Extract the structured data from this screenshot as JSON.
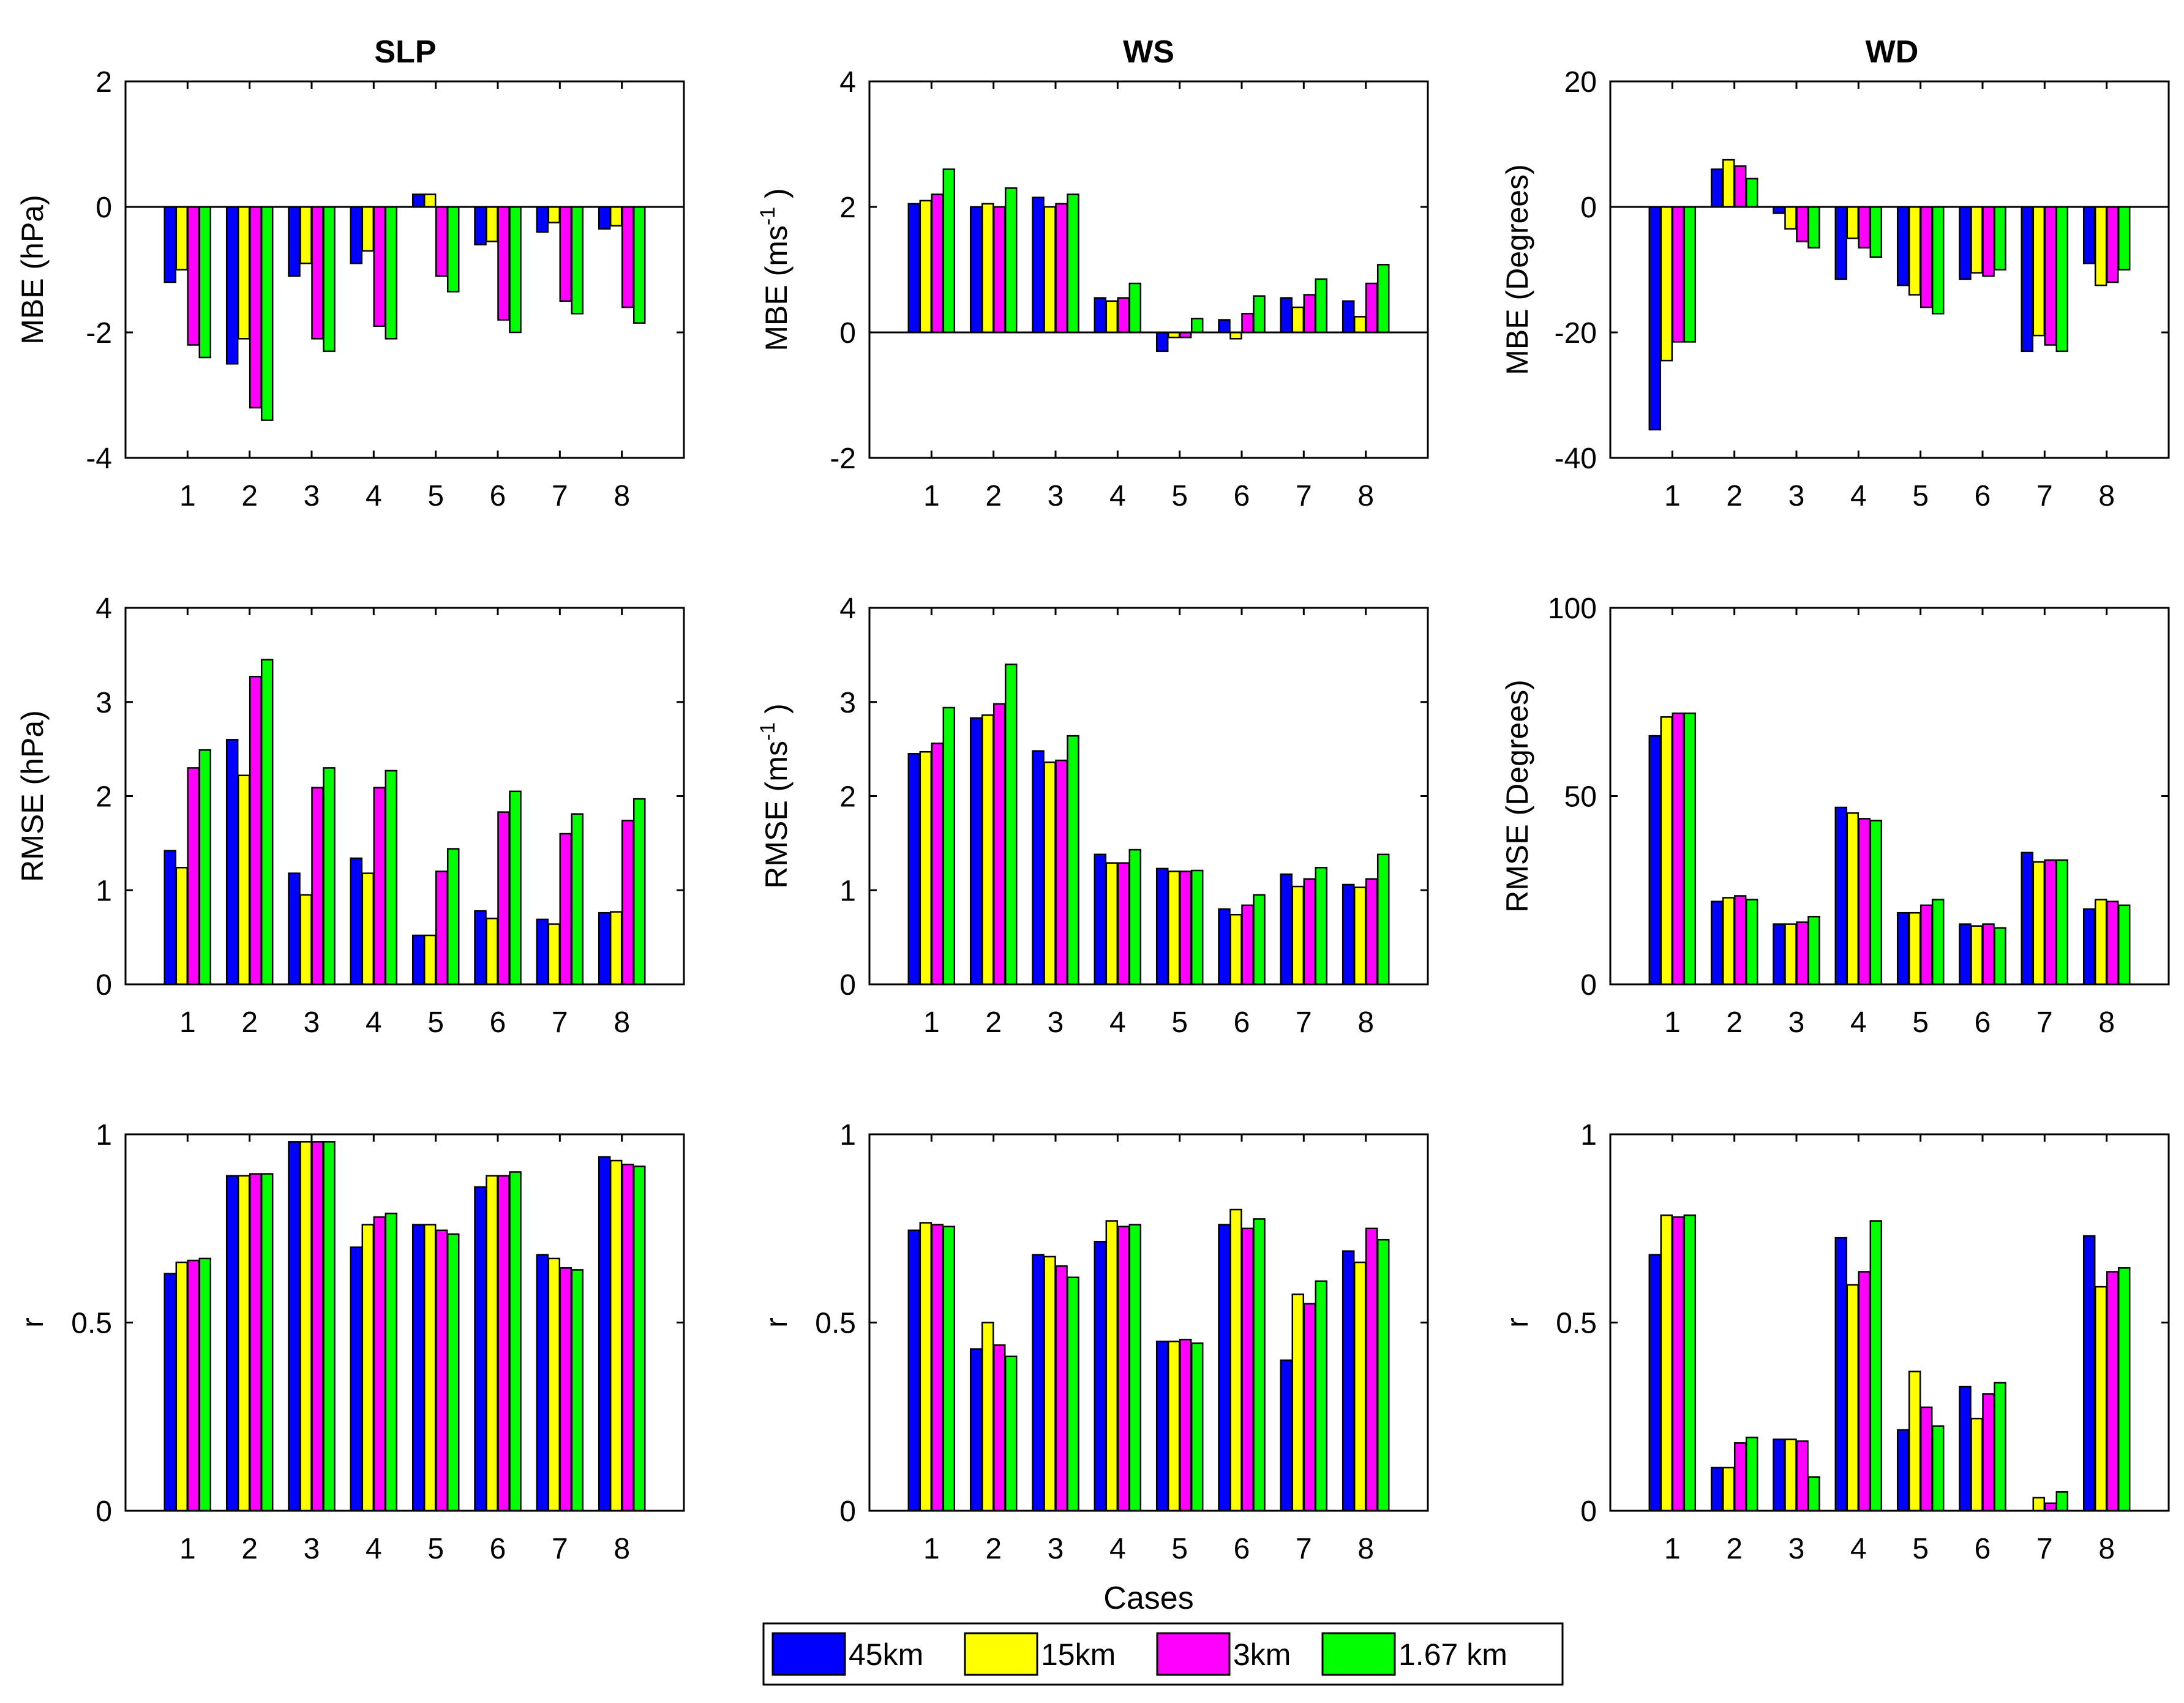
{
  "colors": {
    "45km": "#0000ff",
    "15km": "#ffff00",
    "3km": "#ff00ff",
    "1.67 km": "#00ff00"
  },
  "legend": {
    "items": [
      "45km",
      "15km",
      "3km",
      "1.67 km"
    ]
  },
  "figure_xlabel": "Cases",
  "column_titles": [
    "SLP",
    "WS",
    "WD"
  ],
  "chart_data": [
    {
      "id": "mbe-slp",
      "type": "bar",
      "title": "SLP",
      "ylabel": "MBE (hPa)",
      "ylim": [
        -4,
        2
      ],
      "yticks": [
        -4,
        -2,
        0,
        2
      ],
      "ytick_labels": [
        "-4",
        "-2",
        "0",
        "2"
      ],
      "categories": [
        "1",
        "2",
        "3",
        "4",
        "5",
        "6",
        "7",
        "8"
      ],
      "zero_line": true,
      "series": [
        {
          "name": "45km",
          "values": [
            -1.2,
            -2.5,
            -1.1,
            -0.9,
            0.2,
            -0.6,
            -0.4,
            -0.35
          ]
        },
        {
          "name": "15km",
          "values": [
            -1.0,
            -2.1,
            -0.9,
            -0.7,
            0.2,
            -0.55,
            -0.25,
            -0.3
          ]
        },
        {
          "name": "3km",
          "values": [
            -2.2,
            -3.2,
            -2.1,
            -1.9,
            -1.1,
            -1.8,
            -1.5,
            -1.6
          ]
        },
        {
          "name": "1.67 km",
          "values": [
            -2.4,
            -3.4,
            -2.3,
            -2.1,
            -1.35,
            -2.0,
            -1.7,
            -1.85
          ]
        }
      ]
    },
    {
      "id": "mbe-ws",
      "type": "bar",
      "title": "WS",
      "ylabel": "MBE (ms-1)",
      "ylim": [
        -2,
        4
      ],
      "yticks": [
        -2,
        0,
        2,
        4
      ],
      "ytick_labels": [
        "-2",
        "0",
        "2",
        "4"
      ],
      "categories": [
        "1",
        "2",
        "3",
        "4",
        "5",
        "6",
        "7",
        "8"
      ],
      "zero_line": true,
      "series": [
        {
          "name": "45km",
          "values": [
            2.05,
            2.0,
            2.15,
            0.55,
            -0.3,
            0.2,
            0.55,
            0.5
          ]
        },
        {
          "name": "15km",
          "values": [
            2.1,
            2.05,
            2.0,
            0.5,
            -0.08,
            -0.1,
            0.4,
            0.25
          ]
        },
        {
          "name": "3km",
          "values": [
            2.2,
            2.0,
            2.05,
            0.55,
            -0.08,
            0.3,
            0.6,
            0.78
          ]
        },
        {
          "name": "1.67 km",
          "values": [
            2.6,
            2.3,
            2.2,
            0.78,
            0.22,
            0.58,
            0.85,
            1.08
          ]
        }
      ]
    },
    {
      "id": "mbe-wd",
      "type": "bar",
      "title": "WD",
      "ylabel": "MBE (Degrees)",
      "ylim": [
        -40,
        20
      ],
      "yticks": [
        -40,
        -20,
        0,
        20
      ],
      "ytick_labels": [
        "-40",
        "-20",
        "0",
        "20"
      ],
      "categories": [
        "1",
        "2",
        "3",
        "4",
        "5",
        "6",
        "7",
        "8"
      ],
      "zero_line": true,
      "series": [
        {
          "name": "45km",
          "values": [
            -35.5,
            6.0,
            -1.0,
            -11.5,
            -12.5,
            -11.5,
            -23.0,
            -9.0
          ]
        },
        {
          "name": "15km",
          "values": [
            -24.5,
            7.5,
            -3.5,
            -5.0,
            -14.0,
            -10.5,
            -20.5,
            -12.5
          ]
        },
        {
          "name": "3km",
          "values": [
            -21.5,
            6.5,
            -5.5,
            -6.5,
            -16.0,
            -11.0,
            -22.0,
            -12.0
          ]
        },
        {
          "name": "1.67 km",
          "values": [
            -21.5,
            4.5,
            -6.5,
            -8.0,
            -17.0,
            -10.0,
            -23.0,
            -10.0
          ]
        }
      ]
    },
    {
      "id": "rmse-slp",
      "type": "bar",
      "title": "",
      "ylabel": "RMSE (hPa)",
      "ylim": [
        0,
        4
      ],
      "yticks": [
        0,
        1,
        2,
        3,
        4
      ],
      "ytick_labels": [
        "0",
        "1",
        "2",
        "3",
        "4"
      ],
      "categories": [
        "1",
        "2",
        "3",
        "4",
        "5",
        "6",
        "7",
        "8"
      ],
      "zero_line": false,
      "series": [
        {
          "name": "45km",
          "values": [
            1.42,
            2.6,
            1.18,
            1.34,
            0.52,
            0.78,
            0.69,
            0.76
          ]
        },
        {
          "name": "15km",
          "values": [
            1.24,
            2.22,
            0.95,
            1.18,
            0.52,
            0.7,
            0.64,
            0.77
          ]
        },
        {
          "name": "3km",
          "values": [
            2.3,
            3.27,
            2.09,
            2.09,
            1.2,
            1.83,
            1.6,
            1.74
          ]
        },
        {
          "name": "1.67 km",
          "values": [
            2.49,
            3.45,
            2.3,
            2.27,
            1.44,
            2.05,
            1.81,
            1.97
          ]
        }
      ]
    },
    {
      "id": "rmse-ws",
      "type": "bar",
      "title": "",
      "ylabel": "RMSE (ms-1)",
      "ylim": [
        0,
        4
      ],
      "yticks": [
        0,
        1,
        2,
        3,
        4
      ],
      "ytick_labels": [
        "0",
        "1",
        "2",
        "3",
        "4"
      ],
      "categories": [
        "1",
        "2",
        "3",
        "4",
        "5",
        "6",
        "7",
        "8"
      ],
      "zero_line": false,
      "series": [
        {
          "name": "45km",
          "values": [
            2.45,
            2.83,
            2.48,
            1.38,
            1.23,
            0.8,
            1.17,
            1.06
          ]
        },
        {
          "name": "15km",
          "values": [
            2.47,
            2.86,
            2.36,
            1.29,
            1.2,
            0.74,
            1.04,
            1.03
          ]
        },
        {
          "name": "3km",
          "values": [
            2.56,
            2.98,
            2.38,
            1.29,
            1.2,
            0.84,
            1.12,
            1.12
          ]
        },
        {
          "name": "1.67 km",
          "values": [
            2.94,
            3.4,
            2.64,
            1.43,
            1.21,
            0.95,
            1.24,
            1.38
          ]
        }
      ]
    },
    {
      "id": "rmse-wd",
      "type": "bar",
      "title": "",
      "ylabel": "RMSE (Degrees)",
      "ylim": [
        0,
        100
      ],
      "yticks": [
        0,
        50,
        100
      ],
      "ytick_labels": [
        "0",
        "50",
        "100"
      ],
      "categories": [
        "1",
        "2",
        "3",
        "4",
        "5",
        "6",
        "7",
        "8"
      ],
      "zero_line": false,
      "series": [
        {
          "name": "45km",
          "values": [
            66,
            22,
            16,
            47,
            19,
            16,
            35,
            20
          ]
        },
        {
          "name": "15km",
          "values": [
            71,
            23,
            16,
            45.5,
            19,
            15.5,
            32.5,
            22.5
          ]
        },
        {
          "name": "3km",
          "values": [
            72,
            23.5,
            16.5,
            44,
            21,
            16,
            33,
            22
          ]
        },
        {
          "name": "1.67 km",
          "values": [
            72,
            22.5,
            18,
            43.5,
            22.5,
            15,
            33,
            21
          ]
        }
      ]
    },
    {
      "id": "r-slp",
      "type": "bar",
      "title": "",
      "ylabel": "r",
      "ylim": [
        0,
        1
      ],
      "yticks": [
        0,
        0.5,
        1
      ],
      "ytick_labels": [
        "0",
        "0.5",
        "1"
      ],
      "categories": [
        "1",
        "2",
        "3",
        "4",
        "5",
        "6",
        "7",
        "8"
      ],
      "zero_line": false,
      "series": [
        {
          "name": "45km",
          "values": [
            0.63,
            0.89,
            0.98,
            0.7,
            0.76,
            0.86,
            0.68,
            0.94
          ]
        },
        {
          "name": "15km",
          "values": [
            0.66,
            0.89,
            0.98,
            0.76,
            0.76,
            0.89,
            0.67,
            0.93
          ]
        },
        {
          "name": "3km",
          "values": [
            0.665,
            0.895,
            0.98,
            0.78,
            0.745,
            0.89,
            0.645,
            0.92
          ]
        },
        {
          "name": "1.67 km",
          "values": [
            0.67,
            0.895,
            0.98,
            0.79,
            0.735,
            0.9,
            0.64,
            0.915
          ]
        }
      ]
    },
    {
      "id": "r-ws",
      "type": "bar",
      "title": "",
      "ylabel": "r",
      "ylim": [
        0,
        1
      ],
      "yticks": [
        0,
        0.5,
        1
      ],
      "ytick_labels": [
        "0",
        "0.5",
        "1"
      ],
      "categories": [
        "1",
        "2",
        "3",
        "4",
        "5",
        "6",
        "7",
        "8"
      ],
      "zero_line": false,
      "series": [
        {
          "name": "45km",
          "values": [
            0.745,
            0.43,
            0.68,
            0.715,
            0.45,
            0.76,
            0.4,
            0.69
          ]
        },
        {
          "name": "15km",
          "values": [
            0.765,
            0.5,
            0.675,
            0.77,
            0.45,
            0.8,
            0.575,
            0.66
          ]
        },
        {
          "name": "3km",
          "values": [
            0.76,
            0.44,
            0.65,
            0.755,
            0.455,
            0.75,
            0.55,
            0.75
          ]
        },
        {
          "name": "1.67 km",
          "values": [
            0.755,
            0.41,
            0.62,
            0.76,
            0.445,
            0.775,
            0.61,
            0.72
          ]
        }
      ]
    },
    {
      "id": "r-wd",
      "type": "bar",
      "title": "",
      "ylabel": "r",
      "ylim": [
        0,
        1
      ],
      "yticks": [
        0,
        0.5,
        1
      ],
      "ytick_labels": [
        "0",
        "0.5",
        "1"
      ],
      "categories": [
        "1",
        "2",
        "3",
        "4",
        "5",
        "6",
        "7",
        "8"
      ],
      "zero_line": false,
      "series": [
        {
          "name": "45km",
          "values": [
            0.68,
            0.115,
            0.19,
            0.725,
            0.215,
            0.33,
            0.0,
            0.73
          ]
        },
        {
          "name": "15km",
          "values": [
            0.785,
            0.115,
            0.19,
            0.6,
            0.37,
            0.245,
            0.035,
            0.595
          ]
        },
        {
          "name": "3km",
          "values": [
            0.78,
            0.18,
            0.185,
            0.635,
            0.275,
            0.31,
            0.02,
            0.635
          ]
        },
        {
          "name": "1.67 km",
          "values": [
            0.785,
            0.195,
            0.09,
            0.77,
            0.225,
            0.34,
            0.05,
            0.645
          ]
        }
      ]
    }
  ]
}
